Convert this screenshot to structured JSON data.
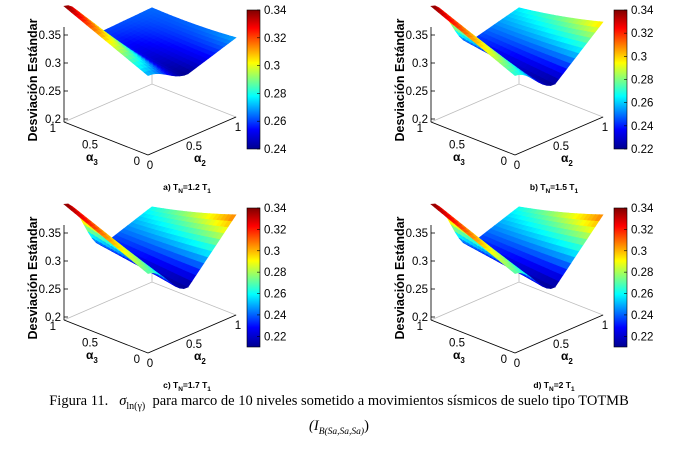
{
  "figure": {
    "caption_label": "Figura 11.",
    "caption_sigma": "σ",
    "caption_sigma_sub": "ln(γ)",
    "caption_text": "para marco de 10 niveles sometido a movimientos sísmicos de suelo tipo TOTMB",
    "caption_measure": "(I",
    "caption_measure_sub": "B(Sa,Sa,Sa)",
    "caption_measure_end": ")"
  },
  "colormap": {
    "name": "jet",
    "stops": [
      "#00008f",
      "#0000ff",
      "#00ffff",
      "#ffff00",
      "#ff0000",
      "#800000"
    ]
  },
  "chart_data": [
    {
      "type": "surface",
      "panel_label": "a) T",
      "panel_label_sub1": "N",
      "panel_label_mid": "=1.2 T",
      "panel_label_sub2": "1",
      "zlabel": "Desviación Estándar",
      "xlabel": "α",
      "xlabel_sub": "2",
      "ylabel": "α",
      "ylabel_sub": "3",
      "xticks": [
        "0",
        "0.5",
        "1"
      ],
      "yticks": [
        "0",
        "0.5",
        "1"
      ],
      "zticks": [
        "0.2",
        "0.25",
        "0.3",
        "0.35"
      ],
      "zlim": [
        0.2,
        0.35
      ],
      "colorbar_ticks": [
        "0.34",
        "0.32",
        "0.3",
        "0.28",
        "0.26",
        "0.24"
      ],
      "colorbar_range": [
        0.24,
        0.34
      ],
      "surface_model": {
        "z_at_a2_0_a3_1": 0.34,
        "z_at_a2_0_a3_0": 0.27,
        "valley_min": 0.24,
        "valley_position_a2": 0.45,
        "z_at_a2_1": 0.27
      }
    },
    {
      "type": "surface",
      "panel_label": "b) T",
      "panel_label_sub1": "N",
      "panel_label_mid": "=1.5 T",
      "panel_label_sub2": "1",
      "zlabel": "Desviación Estándar",
      "xlabel": "α",
      "xlabel_sub": "2",
      "ylabel": "α",
      "ylabel_sub": "3",
      "xticks": [
        "0",
        "0.5",
        "1"
      ],
      "yticks": [
        "0",
        "0.5",
        "1"
      ],
      "zticks": [
        "0.2",
        "0.25",
        "0.3",
        "0.35"
      ],
      "zlim": [
        0.2,
        0.35
      ],
      "colorbar_ticks": [
        "0.34",
        "0.32",
        "0.3",
        "0.28",
        "0.26",
        "0.24",
        "0.22"
      ],
      "colorbar_range": [
        0.22,
        0.34
      ],
      "surface_model": {
        "z_at_a2_0_a3_1": 0.34,
        "z_at_a2_0_a3_0": 0.27,
        "valley_min": 0.22,
        "valley_position_a2": 0.45,
        "z_at_a2_1": 0.3
      }
    },
    {
      "type": "surface",
      "panel_label": "c) T",
      "panel_label_sub1": "N",
      "panel_label_mid": "=1.7 T",
      "panel_label_sub2": "1",
      "zlabel": "Desviación Estándar",
      "xlabel": "α",
      "xlabel_sub": "2",
      "ylabel": "α",
      "ylabel_sub": "3",
      "xticks": [
        "0",
        "0.5",
        "1"
      ],
      "yticks": [
        "0",
        "0.5",
        "1"
      ],
      "zticks": [
        "0.2",
        "0.25",
        "0.3",
        "0.35"
      ],
      "zlim": [
        0.2,
        0.35
      ],
      "colorbar_ticks": [
        "0.34",
        "0.32",
        "0.3",
        "0.28",
        "0.26",
        "0.24",
        "0.22"
      ],
      "colorbar_range": [
        0.21,
        0.34
      ],
      "surface_model": {
        "z_at_a2_0_a3_1": 0.34,
        "z_at_a2_0_a3_0": 0.27,
        "valley_min": 0.21,
        "valley_position_a2": 0.45,
        "z_at_a2_1": 0.31
      }
    },
    {
      "type": "surface",
      "panel_label": "d) T",
      "panel_label_sub1": "N",
      "panel_label_mid": "=2 T",
      "panel_label_sub2": "1",
      "zlabel": "Desviación Estándar",
      "xlabel": "α",
      "xlabel_sub": "2",
      "ylabel": "α",
      "ylabel_sub": "3",
      "xticks": [
        "0",
        "0.5",
        "1"
      ],
      "yticks": [
        "0",
        "0.5",
        "1"
      ],
      "zticks": [
        "0.2",
        "0.25",
        "0.3",
        "0.35"
      ],
      "zlim": [
        0.2,
        0.35
      ],
      "colorbar_ticks": [
        "0.34",
        "0.32",
        "0.3",
        "0.28",
        "0.26",
        "0.24",
        "0.22"
      ],
      "colorbar_range": [
        0.21,
        0.34
      ],
      "surface_model": {
        "z_at_a2_0_a3_1": 0.34,
        "z_at_a2_0_a3_0": 0.27,
        "valley_min": 0.21,
        "valley_position_a2": 0.45,
        "z_at_a2_1": 0.31
      }
    }
  ]
}
